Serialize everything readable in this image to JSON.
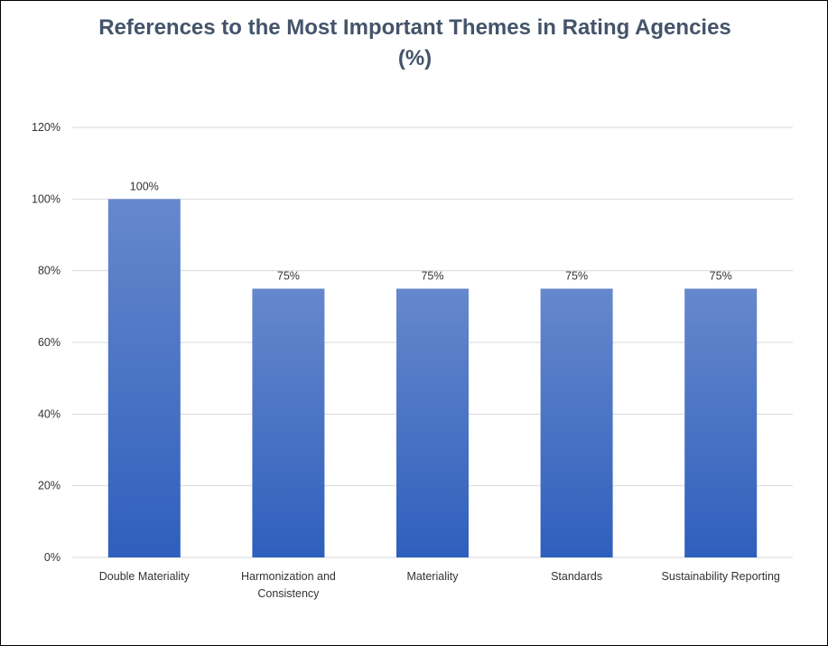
{
  "chart_data": {
    "type": "bar",
    "title_line_1": "References to the Most Important Themes in Rating Agencies",
    "title_line_2": "(%)",
    "categories": [
      [
        "Double Materiality"
      ],
      [
        "Harmonization and",
        "Consistency"
      ],
      [
        "Materiality"
      ],
      [
        "Standards"
      ],
      [
        "Sustainability Reporting"
      ]
    ],
    "values": [
      100,
      75,
      75,
      75,
      75
    ],
    "data_labels": [
      "100%",
      "75%",
      "75%",
      "75%",
      "75%"
    ],
    "y_ticks": [
      0,
      20,
      40,
      60,
      80,
      100,
      120
    ],
    "y_tick_labels": [
      "0%",
      "20%",
      "40%",
      "60%",
      "80%",
      "100%",
      "120%"
    ],
    "ylim": [
      0,
      120
    ],
    "xlabel": "",
    "ylabel": "",
    "grid": true,
    "legend": "none",
    "colors": {
      "bar_top": "#6688cc",
      "bar_bottom": "#2f5fbd",
      "grid": "#d9d9d9",
      "title": "#44546a"
    }
  }
}
